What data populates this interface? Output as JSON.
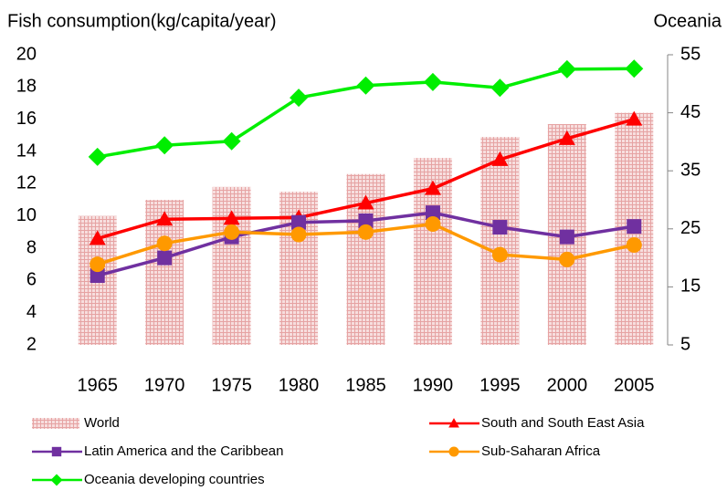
{
  "chart_data": {
    "type": "combo",
    "y_label": "Fish consumption(kg/capita/year)",
    "y2_label": "Oceania",
    "categories": [
      "1965",
      "1970",
      "1975",
      "1980",
      "1985",
      "1990",
      "1995",
      "2000",
      "2005"
    ],
    "ylim": [
      2,
      20
    ],
    "yticks": [
      2,
      4,
      6,
      8,
      10,
      12,
      14,
      16,
      18,
      20
    ],
    "y2lim": [
      5,
      55
    ],
    "y2ticks": [
      5,
      15,
      25,
      35,
      45,
      55
    ],
    "series": [
      {
        "name": "World",
        "type": "bar",
        "color": "#e6a3a3",
        "values": [
          10.0,
          11.0,
          11.8,
          11.5,
          12.6,
          13.6,
          14.9,
          15.7,
          16.4
        ]
      },
      {
        "name": "South and South East Asia",
        "type": "line",
        "marker": "triangle",
        "color": "#ff0000",
        "values": [
          8.6,
          9.8,
          9.85,
          9.9,
          10.8,
          11.7,
          13.5,
          14.8,
          16.0
        ]
      },
      {
        "name": "Latin America and the Caribbean",
        "type": "line",
        "marker": "square",
        "color": "#7030a0",
        "values": [
          6.3,
          7.4,
          8.7,
          9.6,
          9.7,
          10.2,
          9.3,
          8.7,
          9.35
        ]
      },
      {
        "name": "Sub-Saharan Africa",
        "type": "line",
        "marker": "circle",
        "color": "#ff9900",
        "values": [
          7.0,
          8.3,
          9.0,
          8.85,
          9.0,
          9.5,
          7.6,
          7.3,
          8.2
        ]
      },
      {
        "name": "Oceania developing countries",
        "type": "line",
        "marker": "diamond",
        "axis": "y2",
        "color": "#00ee00",
        "values": [
          37.4,
          39.4,
          40.1,
          47.6,
          49.7,
          50.3,
          49.3,
          52.5,
          52.6
        ]
      }
    ]
  }
}
